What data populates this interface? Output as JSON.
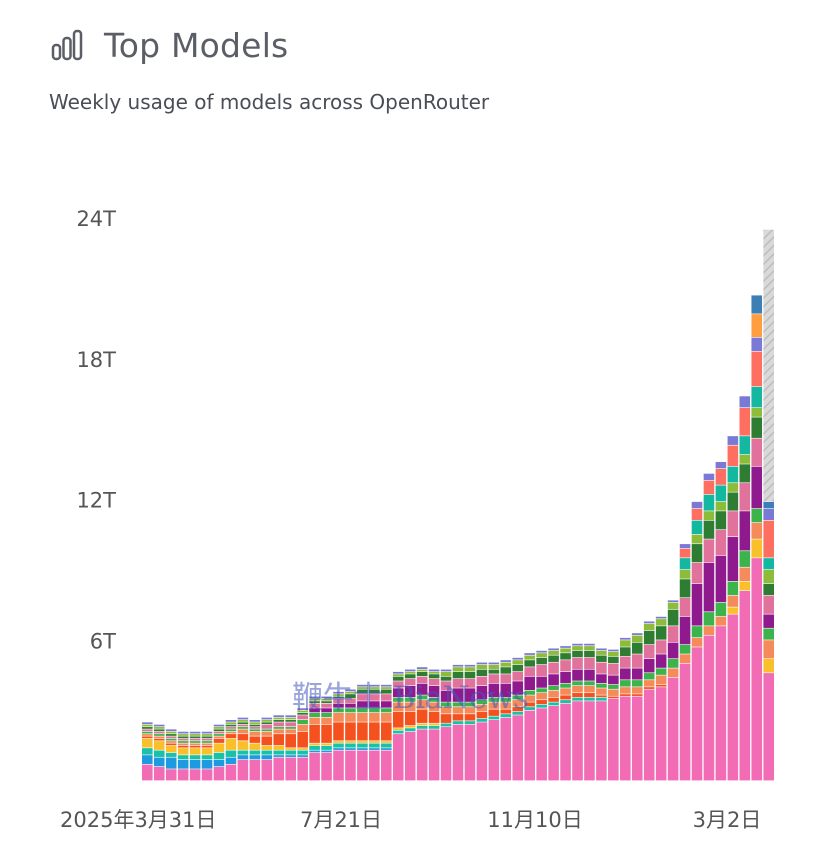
{
  "header": {
    "title": "Top Models",
    "subtitle": "Weekly usage of models across OpenRouter",
    "icon": "bar-chart-icon"
  },
  "watermark": "鞭牛士 BiaNews",
  "chart_data": {
    "type": "bar",
    "stacked": true,
    "ylim": [
      0,
      24
    ],
    "y_ticks": [
      "6T",
      "12T",
      "18T",
      "24T"
    ],
    "x_tick_labels": [
      "2025年3月31日",
      "7月21日",
      "11月10日",
      "3月2日"
    ],
    "x_tick_index": [
      0,
      16,
      32,
      48
    ],
    "grid": false,
    "legend": "none",
    "series": [
      {
        "color": "#f26bb5",
        "values": [
          0.7,
          0.6,
          0.5,
          0.5,
          0.5,
          0.5,
          0.6,
          0.7,
          0.9,
          0.9,
          0.9,
          1.0,
          1.0,
          1.0,
          1.2,
          1.2,
          1.3,
          1.3,
          1.3,
          1.3,
          1.3,
          2.0,
          2.1,
          2.2,
          2.2,
          2.3,
          2.4,
          2.4,
          2.5,
          2.6,
          2.7,
          2.8,
          3.0,
          3.1,
          3.2,
          3.3,
          3.4,
          3.4,
          3.4,
          3.5,
          3.6,
          3.6,
          3.9,
          4.0,
          4.4,
          5.0,
          5.7,
          6.2,
          6.6,
          7.1,
          8.1,
          9.5,
          4.6
        ]
      },
      {
        "color": "#1e9be0",
        "values": [
          0.4,
          0.4,
          0.5,
          0.4,
          0.4,
          0.4,
          0.3,
          0.3,
          0.2,
          0.2,
          0.2,
          0.1,
          0.1,
          0.1,
          0.1,
          0.1,
          0.1,
          0.1,
          0.1,
          0.1,
          0.1,
          0,
          0,
          0,
          0,
          0,
          0,
          0,
          0,
          0,
          0,
          0,
          0,
          0,
          0,
          0,
          0,
          0,
          0,
          0,
          0,
          0,
          0,
          0,
          0,
          0,
          0,
          0,
          0,
          0,
          0,
          0,
          0
        ]
      },
      {
        "color": "#19c2a6",
        "values": [
          0.3,
          0.3,
          0.2,
          0.2,
          0.2,
          0.2,
          0.3,
          0.3,
          0.2,
          0.2,
          0.2,
          0.2,
          0.2,
          0.2,
          0.2,
          0.2,
          0.2,
          0.2,
          0.2,
          0.2,
          0.2,
          0.15,
          0.15,
          0.15,
          0.15,
          0.15,
          0.15,
          0.15,
          0.15,
          0.15,
          0.15,
          0.15,
          0.15,
          0.15,
          0.15,
          0.15,
          0.15,
          0.15,
          0.15,
          0,
          0,
          0,
          0,
          0,
          0,
          0,
          0,
          0,
          0,
          0,
          0,
          0,
          0
        ]
      },
      {
        "color": "#f9c02c",
        "values": [
          0.4,
          0.4,
          0.3,
          0.3,
          0.3,
          0.3,
          0.4,
          0.5,
          0.4,
          0.3,
          0.2,
          0.2,
          0.1,
          0.1,
          0.1,
          0.1,
          0.1,
          0.1,
          0.1,
          0.1,
          0.1,
          0.1,
          0.1,
          0.1,
          0.1,
          0,
          0,
          0,
          0,
          0,
          0,
          0,
          0,
          0,
          0,
          0,
          0,
          0,
          0,
          0,
          0,
          0,
          0,
          0,
          0,
          0,
          0,
          0,
          0,
          0.3,
          0.4,
          0.8,
          0.6
        ]
      },
      {
        "color": "#f4511e",
        "values": [
          0.1,
          0.1,
          0.1,
          0.1,
          0.1,
          0.1,
          0.2,
          0.2,
          0.3,
          0.3,
          0.4,
          0.5,
          0.6,
          0.7,
          0.8,
          0.8,
          0.8,
          0.8,
          0.8,
          0.8,
          0.8,
          0.7,
          0.6,
          0.6,
          0.5,
          0.4,
          0.3,
          0.3,
          0.3,
          0.3,
          0.2,
          0.2,
          0.2,
          0.2,
          0.2,
          0.2,
          0.2,
          0.2,
          0.1,
          0.1,
          0.1,
          0.1,
          0.1,
          0.1,
          0,
          0,
          0,
          0,
          0,
          0,
          0,
          0,
          0
        ]
      },
      {
        "color": "#f58a5a",
        "values": [
          0.1,
          0.1,
          0.1,
          0.1,
          0.1,
          0.1,
          0.1,
          0.1,
          0.2,
          0.2,
          0.2,
          0.2,
          0.2,
          0.3,
          0.3,
          0.3,
          0.4,
          0.4,
          0.4,
          0.4,
          0.4,
          0.4,
          0.4,
          0.4,
          0.4,
          0.3,
          0.3,
          0.3,
          0.3,
          0.3,
          0.3,
          0.3,
          0.3,
          0.3,
          0.3,
          0.3,
          0.3,
          0.3,
          0.3,
          0.3,
          0.3,
          0.3,
          0.3,
          0.4,
          0.4,
          0.4,
          0.4,
          0.4,
          0.4,
          0.5,
          0.6,
          0.7,
          0.8
        ]
      },
      {
        "color": "#3cb44b",
        "values": [
          0.1,
          0.1,
          0.1,
          0.1,
          0.1,
          0.1,
          0.1,
          0.1,
          0.1,
          0.1,
          0.1,
          0.1,
          0.1,
          0.2,
          0.2,
          0.2,
          0.2,
          0.2,
          0.2,
          0.2,
          0.2,
          0.2,
          0.2,
          0.2,
          0.2,
          0.2,
          0.2,
          0.2,
          0.2,
          0.2,
          0.2,
          0.2,
          0.2,
          0.2,
          0.2,
          0.2,
          0.2,
          0.2,
          0.2,
          0.2,
          0.3,
          0.3,
          0.3,
          0.3,
          0.4,
          0.4,
          0.5,
          0.6,
          0.6,
          0.6,
          0.7,
          0.6,
          0.5
        ]
      },
      {
        "color": "#8e1a8e",
        "values": [
          0,
          0,
          0,
          0,
          0,
          0,
          0,
          0,
          0,
          0,
          0,
          0,
          0,
          0,
          0.2,
          0.2,
          0.2,
          0.2,
          0.3,
          0.3,
          0.3,
          0.4,
          0.5,
          0.5,
          0.5,
          0.5,
          0.6,
          0.6,
          0.6,
          0.6,
          0.6,
          0.6,
          0.6,
          0.5,
          0.5,
          0.5,
          0.5,
          0.5,
          0.4,
          0.4,
          0.5,
          0.5,
          0.6,
          0.6,
          0.7,
          1.2,
          1.8,
          2.1,
          2.0,
          1.9,
          1.7,
          1.8,
          0.6
        ]
      },
      {
        "color": "#e0729c",
        "values": [
          0.1,
          0.1,
          0.1,
          0.1,
          0.1,
          0.1,
          0.1,
          0.1,
          0.1,
          0.1,
          0.2,
          0.2,
          0.2,
          0.2,
          0.2,
          0.2,
          0.2,
          0.2,
          0.3,
          0.3,
          0.3,
          0.3,
          0.3,
          0.3,
          0.3,
          0.4,
          0.4,
          0.4,
          0.4,
          0.4,
          0.4,
          0.4,
          0.4,
          0.5,
          0.5,
          0.5,
          0.5,
          0.5,
          0.5,
          0.5,
          0.5,
          0.6,
          0.6,
          0.6,
          0.7,
          0.8,
          0.9,
          1.0,
          1.1,
          1.1,
          1.2,
          1.2,
          0.8
        ]
      },
      {
        "color": "#2e7d32",
        "values": [
          0.1,
          0.1,
          0.1,
          0.1,
          0.1,
          0.1,
          0.1,
          0.1,
          0.1,
          0.1,
          0.1,
          0.1,
          0.1,
          0.1,
          0.1,
          0.1,
          0.1,
          0.2,
          0.2,
          0.2,
          0.2,
          0.2,
          0.2,
          0.2,
          0.2,
          0.2,
          0.3,
          0.3,
          0.3,
          0.2,
          0.3,
          0.3,
          0.3,
          0.3,
          0.3,
          0.3,
          0.3,
          0.3,
          0.3,
          0.3,
          0.4,
          0.5,
          0.6,
          0.6,
          0.7,
          0.8,
          0.8,
          0.8,
          0.8,
          0.8,
          0.8,
          0.9,
          0.5
        ]
      },
      {
        "color": "#8dbb3a",
        "values": [
          0.1,
          0.1,
          0.1,
          0.1,
          0.1,
          0.1,
          0.1,
          0.1,
          0.1,
          0.1,
          0.1,
          0.1,
          0.1,
          0.1,
          0.1,
          0.1,
          0.1,
          0.1,
          0.1,
          0.1,
          0.1,
          0.1,
          0.1,
          0.1,
          0.1,
          0.2,
          0.2,
          0.2,
          0.2,
          0.2,
          0.2,
          0.2,
          0.2,
          0.2,
          0.2,
          0.2,
          0.2,
          0.2,
          0.2,
          0.2,
          0.3,
          0.3,
          0.3,
          0.3,
          0.3,
          0.4,
          0.4,
          0.4,
          0.4,
          0.4,
          0.4,
          0.4,
          0.6
        ]
      },
      {
        "color": "#14b8a0",
        "values": [
          0,
          0,
          0,
          0,
          0,
          0,
          0,
          0,
          0,
          0,
          0,
          0,
          0,
          0,
          0,
          0,
          0,
          0,
          0,
          0,
          0,
          0,
          0,
          0,
          0,
          0,
          0,
          0,
          0,
          0,
          0,
          0,
          0,
          0,
          0,
          0,
          0,
          0,
          0,
          0,
          0,
          0,
          0,
          0,
          0,
          0.5,
          0.6,
          0.7,
          0.7,
          0.7,
          0.8,
          0.9,
          0.5
        ]
      },
      {
        "color": "#ff6f61",
        "values": [
          0,
          0,
          0,
          0,
          0,
          0,
          0,
          0,
          0,
          0,
          0,
          0,
          0,
          0,
          0,
          0,
          0,
          0,
          0,
          0,
          0,
          0,
          0,
          0,
          0,
          0,
          0,
          0,
          0,
          0,
          0,
          0,
          0,
          0,
          0,
          0,
          0,
          0,
          0,
          0,
          0,
          0,
          0,
          0,
          0,
          0.4,
          0.5,
          0.6,
          0.7,
          0.9,
          1.2,
          1.5,
          1.6
        ]
      },
      {
        "color": "#7a7ad6",
        "values": [
          0.1,
          0.1,
          0.1,
          0.1,
          0.1,
          0.1,
          0.1,
          0.1,
          0.1,
          0.1,
          0.1,
          0.1,
          0.1,
          0.1,
          0.1,
          0.1,
          0.1,
          0.1,
          0.1,
          0.1,
          0.1,
          0.1,
          0.1,
          0.1,
          0.1,
          0.1,
          0.1,
          0.1,
          0.1,
          0.1,
          0.1,
          0.1,
          0.1,
          0.1,
          0.1,
          0.1,
          0.1,
          0.1,
          0.1,
          0.1,
          0.1,
          0.1,
          0.1,
          0.1,
          0.1,
          0.2,
          0.3,
          0.3,
          0.3,
          0.4,
          0.5,
          0.6,
          0.5
        ]
      },
      {
        "color": "#40e0d0",
        "values": [
          0,
          0,
          0,
          0,
          0,
          0,
          0,
          0,
          0,
          0,
          0,
          0,
          0,
          0,
          0,
          0,
          0,
          0,
          0,
          0,
          0,
          0,
          0,
          0,
          0,
          0,
          0,
          0,
          0,
          0,
          0,
          0,
          0,
          0,
          0,
          0,
          0,
          0,
          0,
          0,
          0,
          0,
          0,
          0,
          0,
          0,
          0,
          0,
          0,
          0,
          0,
          0,
          0
        ]
      },
      {
        "color": "#ff9e40",
        "values": [
          0,
          0,
          0,
          0,
          0,
          0,
          0,
          0,
          0,
          0,
          0,
          0,
          0,
          0,
          0,
          0,
          0,
          0,
          0,
          0,
          0,
          0,
          0,
          0,
          0,
          0,
          0,
          0,
          0,
          0,
          0,
          0,
          0,
          0,
          0,
          0,
          0,
          0,
          0,
          0,
          0,
          0,
          0,
          0,
          0,
          0,
          0,
          0,
          0,
          0,
          0,
          1.0,
          0
        ]
      },
      {
        "color": "#3d7fb5",
        "values": [
          0,
          0,
          0,
          0,
          0,
          0,
          0,
          0,
          0,
          0,
          0,
          0,
          0,
          0,
          0,
          0,
          0,
          0,
          0,
          0,
          0,
          0,
          0,
          0,
          0,
          0,
          0,
          0,
          0,
          0,
          0,
          0,
          0,
          0,
          0,
          0,
          0,
          0,
          0,
          0,
          0,
          0,
          0,
          0,
          0,
          0,
          0,
          0,
          0,
          0,
          0,
          0.8,
          0.3
        ]
      },
      {
        "color": "#cccccc",
        "values": [
          0,
          0,
          0,
          0,
          0,
          0,
          0,
          0,
          0,
          0,
          0,
          0,
          0,
          0,
          0,
          0,
          0,
          0,
          0,
          0,
          0,
          0,
          0,
          0,
          0,
          0,
          0,
          0,
          0,
          0,
          0,
          0,
          0,
          0,
          0,
          0,
          0,
          0,
          0,
          0,
          0,
          0,
          0,
          0,
          0,
          0,
          0,
          0,
          0,
          0,
          0,
          0,
          11.6
        ]
      }
    ]
  }
}
